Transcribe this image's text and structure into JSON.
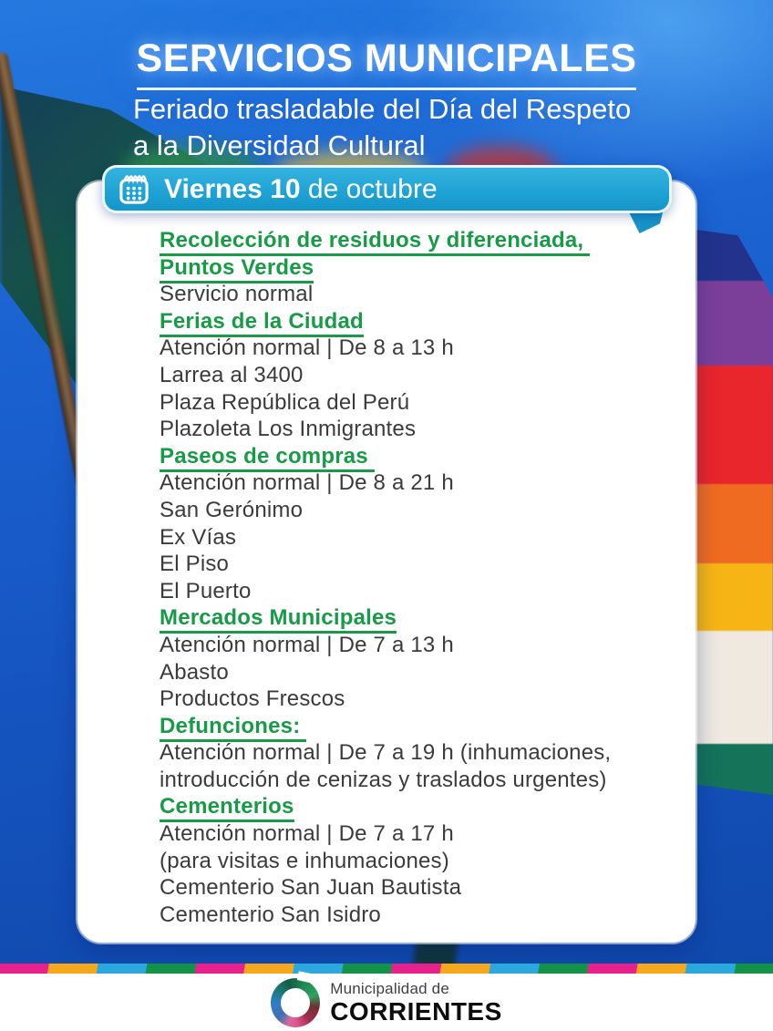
{
  "header": {
    "title": "SERVICIOS MUNICIPALES",
    "subtitle_line1": "Feriado trasladable del Día del Respeto",
    "subtitle_line2": "a la Diversidad Cultural"
  },
  "date_banner": {
    "day_bold": "Viernes 10",
    "day_rest": " de octubre",
    "icon": "calendar-icon"
  },
  "card": {
    "sections": [
      {
        "heading": [
          "Recolección de residuos y diferenciada, ",
          "Puntos Verdes"
        ],
        "items": [
          "Servicio normal"
        ]
      },
      {
        "heading": [
          "Ferias de la Ciudad"
        ],
        "items": [
          "Atención normal | De 8 a 13 h",
          "Larrea al 3400",
          "Plaza República del Perú",
          "Plazoleta Los Inmigrantes"
        ]
      },
      {
        "heading": [
          "Paseos de compras "
        ],
        "items": [
          "Atención normal | De 8 a 21 h",
          "San Gerónimo",
          "Ex Vías",
          "El Piso",
          "El Puerto"
        ]
      },
      {
        "heading": [
          "Mercados Municipales"
        ],
        "items": [
          "Atención normal | De 7 a 13 h",
          "Abasto",
          "Productos Frescos"
        ]
      },
      {
        "heading": [
          "Defunciones: "
        ],
        "items": [
          "Atención normal | De 7 a 19 h (inhumaciones,",
          "introducción de cenizas y traslados urgentes)"
        ]
      },
      {
        "heading": [
          "Cementerios"
        ],
        "items": [
          "Atención normal | De 7 a 17 h",
          "(para visitas e inhumaciones)",
          "Cementerio San Juan Bautista",
          "Cementerio San Isidro"
        ]
      }
    ]
  },
  "footer": {
    "org_line1": "Municipalidad de",
    "org_line2": "CORRIENTES",
    "logo": "municipality-swirl-logo"
  },
  "colors": {
    "accent_cyan": "#1EA2D4",
    "heading_green": "#189B47",
    "background_blue": "#1B62D1",
    "stripe": [
      "#E9218C",
      "#F5A81C",
      "#2BA9DF",
      "#149247"
    ]
  }
}
